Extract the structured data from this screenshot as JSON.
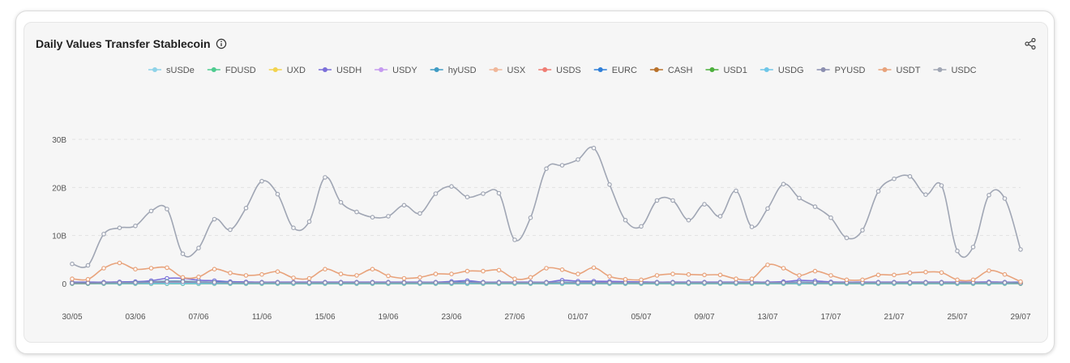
{
  "chart": {
    "title": "Daily Values Transfer Stablecoin",
    "icons": {
      "info": "info-icon",
      "share": "share-icon"
    }
  },
  "chart_data": {
    "type": "line",
    "title": "Daily Values Transfer Stablecoin",
    "xlabel": "",
    "ylabel": "",
    "ylim": [
      0,
      30000000000
    ],
    "yticks": [
      {
        "value": 0,
        "label": "0"
      },
      {
        "value": 10000000000,
        "label": "10B"
      },
      {
        "value": 20000000000,
        "label": "20B"
      },
      {
        "value": 30000000000,
        "label": "30B"
      }
    ],
    "grid": true,
    "legend": "top-center",
    "x": [
      "30/05",
      "31/05",
      "01/06",
      "02/06",
      "03/06",
      "04/06",
      "05/06",
      "06/06",
      "07/06",
      "08/06",
      "09/06",
      "10/06",
      "11/06",
      "12/06",
      "13/06",
      "14/06",
      "15/06",
      "16/06",
      "17/06",
      "18/06",
      "19/06",
      "20/06",
      "21/06",
      "22/06",
      "23/06",
      "24/06",
      "25/06",
      "26/06",
      "27/06",
      "28/06",
      "29/06",
      "30/06",
      "01/07",
      "02/07",
      "03/07",
      "04/07",
      "05/07",
      "06/07",
      "07/07",
      "08/07",
      "09/07",
      "10/07",
      "11/07",
      "12/07",
      "13/07",
      "14/07",
      "15/07",
      "16/07",
      "17/07",
      "18/07",
      "19/07",
      "20/07",
      "21/07",
      "22/07",
      "23/07",
      "24/07",
      "25/07",
      "26/07",
      "27/07",
      "28/07",
      "29/07"
    ],
    "xtick_labels": [
      "30/05",
      "03/06",
      "07/06",
      "11/06",
      "15/06",
      "19/06",
      "23/06",
      "27/06",
      "01/07",
      "05/07",
      "09/07",
      "13/07",
      "17/07",
      "21/07",
      "25/07",
      "29/07"
    ],
    "series": [
      {
        "name": "sUSDe",
        "color": "#8fd3e8",
        "values": [
          0.05,
          0.05,
          0.05,
          0.05,
          0.05,
          0.05,
          0.05,
          0.05,
          0.05,
          0.05,
          0.05,
          0.05,
          0.05,
          0.05,
          0.05,
          0.05,
          0.05,
          0.05,
          0.05,
          0.05,
          0.05,
          0.05,
          0.05,
          0.05,
          0.05,
          0.05,
          0.05,
          0.05,
          0.05,
          0.05,
          0.05,
          0.05,
          0.05,
          0.05,
          0.05,
          0.05,
          0.05,
          0.05,
          0.05,
          0.05,
          0.05,
          0.05,
          0.05,
          0.05,
          0.05,
          0.05,
          0.05,
          0.05,
          0.05,
          0.05,
          0.05,
          0.05,
          0.05,
          0.05,
          0.05,
          0.05,
          0.05,
          0.05,
          0.05,
          0.05,
          0.05
        ]
      },
      {
        "name": "FDUSD",
        "color": "#4ecb8f",
        "values": [
          0.02,
          0.02,
          0.02,
          0.02,
          0.02,
          0.02,
          0.02,
          0.02,
          0.02,
          0.02,
          0.02,
          0.02,
          0.02,
          0.02,
          0.02,
          0.02,
          0.02,
          0.02,
          0.02,
          0.02,
          0.02,
          0.02,
          0.02,
          0.02,
          0.02,
          0.02,
          0.02,
          0.02,
          0.02,
          0.02,
          0.02,
          0.02,
          0.02,
          0.02,
          0.02,
          0.02,
          0.02,
          0.02,
          0.02,
          0.02,
          0.02,
          0.02,
          0.02,
          0.02,
          0.02,
          0.02,
          0.02,
          0.02,
          0.02,
          0.02,
          0.02,
          0.02,
          0.02,
          0.02,
          0.02,
          0.02,
          0.02,
          0.02,
          0.02,
          0.02,
          0.02
        ]
      },
      {
        "name": "UXD",
        "color": "#f2d34f",
        "values": [
          0.01,
          0.01,
          0.01,
          0.01,
          0.01,
          0.01,
          0.01,
          0.01,
          0.01,
          0.01,
          0.01,
          0.01,
          0.01,
          0.01,
          0.01,
          0.01,
          0.01,
          0.01,
          0.01,
          0.01,
          0.01,
          0.01,
          0.01,
          0.01,
          0.01,
          0.01,
          0.01,
          0.01,
          0.01,
          0.01,
          0.01,
          0.01,
          0.01,
          0.01,
          0.01,
          0.01,
          0.01,
          0.01,
          0.01,
          0.01,
          0.01,
          0.01,
          0.01,
          0.01,
          0.01,
          0.01,
          0.01,
          0.01,
          0.01,
          0.01,
          0.01,
          0.01,
          0.01,
          0.01,
          0.01,
          0.01,
          0.01,
          0.01,
          0.01,
          0.01,
          0.01
        ]
      },
      {
        "name": "USDH",
        "color": "#7b6fd9",
        "values": [
          0.3,
          0.3,
          0.3,
          0.35,
          0.4,
          0.6,
          1.1,
          1.1,
          0.7,
          0.6,
          0.4,
          0.35,
          0.3,
          0.3,
          0.3,
          0.3,
          0.3,
          0.3,
          0.3,
          0.3,
          0.3,
          0.3,
          0.3,
          0.3,
          0.45,
          0.6,
          0.3,
          0.3,
          0.3,
          0.3,
          0.3,
          0.7,
          0.5,
          0.5,
          0.45,
          0.4,
          0.35,
          0.3,
          0.3,
          0.3,
          0.3,
          0.3,
          0.3,
          0.3,
          0.3,
          0.4,
          0.65,
          0.55,
          0.35,
          0.3,
          0.3,
          0.3,
          0.3,
          0.3,
          0.3,
          0.3,
          0.3,
          0.3,
          0.35,
          0.3,
          0.3
        ]
      },
      {
        "name": "USDY",
        "color": "#c59af0",
        "values": [
          0.08,
          0.08,
          0.08,
          0.08,
          0.08,
          0.08,
          0.08,
          0.08,
          0.08,
          0.08,
          0.08,
          0.08,
          0.08,
          0.08,
          0.08,
          0.08,
          0.08,
          0.08,
          0.08,
          0.08,
          0.08,
          0.08,
          0.08,
          0.08,
          0.08,
          0.08,
          0.08,
          0.08,
          0.08,
          0.08,
          0.08,
          0.08,
          0.08,
          0.08,
          0.08,
          0.08,
          0.08,
          0.08,
          0.08,
          0.08,
          0.08,
          0.08,
          0.08,
          0.08,
          0.08,
          0.08,
          0.08,
          0.08,
          0.08,
          0.08,
          0.08,
          0.08,
          0.08,
          0.08,
          0.08,
          0.08,
          0.08,
          0.08,
          0.08,
          0.08,
          0.08
        ]
      },
      {
        "name": "hyUSD",
        "color": "#3f9bc4",
        "values": [
          0.15,
          0.15,
          0.15,
          0.2,
          0.25,
          0.35,
          0.5,
          0.5,
          0.35,
          0.3,
          0.25,
          0.2,
          0.2,
          0.2,
          0.2,
          0.2,
          0.2,
          0.2,
          0.2,
          0.2,
          0.2,
          0.2,
          0.2,
          0.2,
          0.25,
          0.3,
          0.2,
          0.2,
          0.2,
          0.2,
          0.2,
          0.3,
          0.25,
          0.25,
          0.2,
          0.2,
          0.2,
          0.2,
          0.2,
          0.2,
          0.2,
          0.2,
          0.2,
          0.2,
          0.2,
          0.2,
          0.3,
          0.25,
          0.2,
          0.2,
          0.2,
          0.2,
          0.2,
          0.2,
          0.2,
          0.2,
          0.2,
          0.2,
          0.2,
          0.2,
          0.2
        ]
      },
      {
        "name": "USX",
        "color": "#f0b79a",
        "values": [
          0.1,
          0.1,
          0.1,
          0.1,
          0.1,
          0.1,
          0.1,
          0.1,
          0.1,
          0.1,
          0.1,
          0.1,
          0.1,
          0.1,
          0.1,
          0.1,
          0.1,
          0.1,
          0.1,
          0.1,
          0.1,
          0.1,
          0.1,
          0.1,
          0.1,
          0.1,
          0.1,
          0.1,
          0.1,
          0.1,
          0.1,
          0.1,
          0.1,
          0.1,
          0.1,
          0.1,
          0.1,
          0.1,
          0.1,
          0.1,
          0.1,
          0.1,
          0.1,
          0.1,
          0.1,
          0.1,
          0.1,
          0.1,
          0.1,
          0.1,
          0.1,
          0.1,
          0.1,
          0.1,
          0.1,
          0.1,
          0.1,
          0.1,
          0.1,
          0.1,
          0.1
        ]
      },
      {
        "name": "USDS",
        "color": "#ef7d74",
        "values": [
          0.12,
          0.12,
          0.12,
          0.12,
          0.12,
          0.12,
          0.12,
          0.12,
          0.12,
          0.12,
          0.12,
          0.12,
          0.12,
          0.12,
          0.12,
          0.12,
          0.12,
          0.12,
          0.12,
          0.12,
          0.12,
          0.12,
          0.12,
          0.12,
          0.12,
          0.12,
          0.12,
          0.12,
          0.12,
          0.12,
          0.12,
          0.12,
          0.12,
          0.12,
          0.12,
          0.12,
          0.12,
          0.12,
          0.12,
          0.12,
          0.12,
          0.12,
          0.12,
          0.12,
          0.12,
          0.12,
          0.12,
          0.12,
          0.12,
          0.12,
          0.12,
          0.12,
          0.12,
          0.12,
          0.12,
          0.12,
          0.12,
          0.12,
          0.12,
          0.12,
          0.12
        ]
      },
      {
        "name": "EURC",
        "color": "#2f7fd8",
        "values": [
          0.06,
          0.06,
          0.06,
          0.06,
          0.06,
          0.06,
          0.06,
          0.06,
          0.06,
          0.06,
          0.06,
          0.06,
          0.06,
          0.06,
          0.06,
          0.06,
          0.06,
          0.06,
          0.06,
          0.06,
          0.06,
          0.06,
          0.06,
          0.06,
          0.06,
          0.06,
          0.06,
          0.06,
          0.06,
          0.06,
          0.06,
          0.06,
          0.06,
          0.06,
          0.06,
          0.06,
          0.06,
          0.06,
          0.06,
          0.06,
          0.06,
          0.06,
          0.06,
          0.06,
          0.06,
          0.06,
          0.06,
          0.06,
          0.06,
          0.06,
          0.06,
          0.06,
          0.06,
          0.06,
          0.06,
          0.06,
          0.06,
          0.06,
          0.06,
          0.06,
          0.06
        ]
      },
      {
        "name": "CASH",
        "color": "#b8712a",
        "values": [
          0.03,
          0.03,
          0.03,
          0.03,
          0.03,
          0.03,
          0.03,
          0.03,
          0.03,
          0.03,
          0.03,
          0.03,
          0.03,
          0.03,
          0.03,
          0.03,
          0.03,
          0.03,
          0.03,
          0.03,
          0.03,
          0.03,
          0.03,
          0.03,
          0.03,
          0.03,
          0.03,
          0.03,
          0.03,
          0.03,
          0.03,
          0.03,
          0.03,
          0.03,
          0.03,
          0.03,
          0.03,
          0.03,
          0.03,
          0.03,
          0.03,
          0.03,
          0.03,
          0.03,
          0.03,
          0.03,
          0.03,
          0.03,
          0.03,
          0.03,
          0.03,
          0.03,
          0.03,
          0.03,
          0.03,
          0.03,
          0.03,
          0.03,
          0.03,
          0.03,
          0.03
        ]
      },
      {
        "name": "USD1",
        "color": "#4caf3c",
        "values": [
          0.0,
          0.0,
          0.0,
          0.0,
          0.0,
          0.0,
          0.0,
          0.0,
          0.0,
          0.0,
          0.0,
          0.0,
          0.0,
          0.0,
          0.0,
          0.0,
          0.0,
          0.0,
          0.0,
          0.0,
          0.0,
          0.0,
          0.0,
          0.0,
          0.0,
          0.0,
          0.0,
          0.0,
          0.0,
          0.0,
          0.0,
          0.0,
          0.0,
          0.0,
          0.0,
          0.0,
          0.0,
          0.0,
          0.0,
          0.0,
          0.0,
          0.0,
          0.0,
          0.0,
          0.0,
          0.0,
          0.0,
          0.0,
          0.0,
          0.0,
          0.0,
          0.0,
          0.0,
          0.0,
          0.0,
          0.0,
          0.0,
          0.0,
          0.0,
          0.0,
          0.0
        ]
      },
      {
        "name": "USDG",
        "color": "#6ec6e8",
        "values": [
          0.04,
          0.04,
          0.04,
          0.04,
          0.04,
          0.04,
          0.04,
          0.04,
          0.04,
          0.04,
          0.04,
          0.04,
          0.04,
          0.04,
          0.04,
          0.04,
          0.04,
          0.04,
          0.04,
          0.04,
          0.04,
          0.04,
          0.04,
          0.04,
          0.04,
          0.04,
          0.04,
          0.04,
          0.04,
          0.04,
          0.04,
          0.04,
          0.04,
          0.04,
          0.04,
          0.04,
          0.04,
          0.04,
          0.04,
          0.04,
          0.04,
          0.04,
          0.04,
          0.04,
          0.04,
          0.04,
          0.04,
          0.04,
          0.04,
          0.04,
          0.04,
          0.04,
          0.04,
          0.04,
          0.04,
          0.04,
          0.04,
          0.04,
          0.04,
          0.04,
          0.04
        ]
      },
      {
        "name": "PYUSD",
        "color": "#8c8fb0",
        "values": [
          0.1,
          0.1,
          0.15,
          0.2,
          0.2,
          0.3,
          0.4,
          0.4,
          0.3,
          0.25,
          0.2,
          0.2,
          0.2,
          0.2,
          0.2,
          0.2,
          0.2,
          0.2,
          0.2,
          0.2,
          0.2,
          0.2,
          0.2,
          0.2,
          0.2,
          0.25,
          0.2,
          0.2,
          0.2,
          0.2,
          0.2,
          0.25,
          0.2,
          0.2,
          0.2,
          0.2,
          0.2,
          0.2,
          0.2,
          0.2,
          0.2,
          0.2,
          0.2,
          0.2,
          0.2,
          0.2,
          0.25,
          0.2,
          0.2,
          0.2,
          0.2,
          0.2,
          0.2,
          0.2,
          0.2,
          0.2,
          0.2,
          0.2,
          0.2,
          0.2,
          0.1
        ]
      },
      {
        "name": "USDT",
        "color": "#e8a37c",
        "values": [
          1.0,
          0.9,
          3.2,
          4.3,
          3.0,
          3.2,
          3.3,
          1.3,
          1.4,
          3.0,
          2.2,
          1.7,
          1.9,
          2.5,
          1.2,
          1.1,
          3.0,
          2.0,
          1.7,
          3.0,
          1.6,
          1.1,
          1.3,
          2.0,
          2.0,
          2.6,
          2.6,
          2.8,
          1.0,
          1.3,
          3.2,
          2.9,
          2.0,
          3.3,
          1.5,
          0.9,
          0.8,
          1.7,
          2.0,
          1.9,
          1.8,
          1.8,
          1.0,
          1.0,
          3.9,
          3.2,
          1.7,
          2.6,
          1.7,
          0.8,
          0.8,
          1.8,
          1.8,
          2.2,
          2.4,
          2.3,
          0.8,
          0.8,
          2.7,
          1.9,
          0.4
        ]
      },
      {
        "name": "USDC",
        "color": "#a0a6b4",
        "values": [
          4.1,
          3.8,
          10.3,
          11.6,
          12.0,
          15.1,
          15.5,
          6.2,
          7.4,
          13.4,
          11.2,
          15.7,
          21.3,
          18.6,
          11.6,
          12.9,
          22.1,
          16.9,
          14.9,
          13.8,
          14.0,
          16.3,
          14.6,
          18.7,
          20.2,
          18.0,
          18.7,
          18.8,
          9.1,
          13.7,
          23.9,
          24.6,
          25.8,
          28.2,
          20.6,
          13.2,
          11.9,
          17.3,
          17.3,
          13.2,
          16.5,
          14.0,
          19.3,
          11.8,
          15.6,
          20.7,
          17.8,
          16.0,
          13.7,
          9.5,
          11.1,
          19.2,
          21.8,
          22.3,
          18.5,
          20.4,
          6.8,
          7.6,
          18.4,
          17.7,
          7.1
        ]
      }
    ]
  }
}
